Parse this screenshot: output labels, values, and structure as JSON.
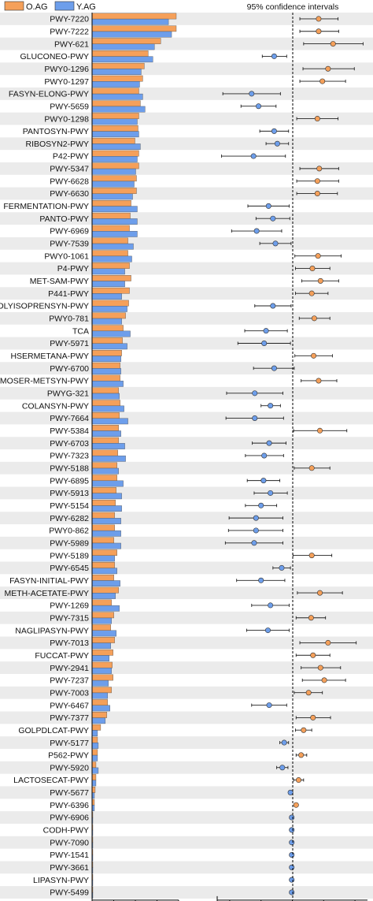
{
  "legend": [
    {
      "label": "O.AG",
      "color": "#f5a05a"
    },
    {
      "label": "Y.AG",
      "color": "#6d9eeb"
    }
  ],
  "ci_title": "95% confidence intervals",
  "colors": {
    "o": "#f5a05a",
    "y": "#6d9eeb",
    "stripe": "#ebebeb",
    "axis": "#000000"
  },
  "chart_data": [
    {
      "type": "bar",
      "orientation": "horizontal",
      "title": "",
      "categories": [
        "PWY-7220",
        "PWY-7222",
        "PWY-621",
        "GLUCONEO-PWY",
        "PWY0-1296",
        "PWY0-1297",
        "FASYN-ELONG-PWY",
        "PWY-5659",
        "PWY0-1298",
        "PANTOSYN-PWY",
        "RIBOSYN2-PWY",
        "P42-PWY",
        "PWY-5347",
        "PWY-6628",
        "PWY-6630",
        "FERMENTATION-PWY",
        "PANTO-PWY",
        "PWY-6969",
        "PWY-7539",
        "PWY0-1061",
        "P4-PWY",
        "MET-SAM-PWY",
        "P441-PWY",
        "POLYISOPRENSYN-PWY",
        "PWY0-781",
        "TCA",
        "PWY-5971",
        "HSERMETANA-PWY",
        "PWY-6700",
        "HOMOSER-METSYN-PWY",
        "PWYG-321",
        "COLANSYN-PWY",
        "PWY-7664",
        "PWY-5384",
        "PWY-6703",
        "PWY-7323",
        "PWY-5188",
        "PWY-6895",
        "PWY-5913",
        "PWY-5154",
        "PWY-6282",
        "PWY0-862",
        "PWY-5989",
        "PWY-5189",
        "PWY-6545",
        "FASYN-INITIAL-PWY",
        "METH-ACETATE-PWY",
        "PWY-1269",
        "PWY-7315",
        "NAGLIPASYN-PWY",
        "PWY-7013",
        "FUCCAT-PWY",
        "PWY-2941",
        "PWY-7237",
        "PWY-7003",
        "PWY-6467",
        "PWY-7377",
        "GOLPDLCAT-PWY",
        "PWY-5177",
        "P562-PWY",
        "PWY-5920",
        "LACTOSECAT-PWY",
        "PWY-5677",
        "PWY-6396",
        "PWY-6906",
        "CODH-PWY",
        "PWY-7090",
        "PWY-1541",
        "PWY-3661",
        "LIPASYN-PWY",
        "PWY-5499"
      ],
      "series": [
        {
          "name": "O.AG",
          "values": [
            108,
            108,
            88,
            72,
            67,
            65,
            60,
            62,
            60,
            59,
            55,
            60,
            60,
            57,
            57,
            50,
            49,
            48,
            46,
            46,
            48,
            50,
            48,
            47,
            43,
            40,
            39,
            38,
            36,
            36,
            34,
            36,
            35,
            34,
            34,
            33,
            32,
            32,
            31,
            30,
            29,
            29,
            28,
            32,
            29,
            28,
            34,
            25,
            28,
            24,
            29,
            27,
            26,
            27,
            25,
            20,
            19,
            11,
            7,
            7,
            5,
            5,
            4,
            3,
            1,
            1,
            1,
            1,
            1,
            1,
            1
          ]
        },
        {
          "name": "Y.AG",
          "values": [
            98,
            102,
            80,
            78,
            63,
            61,
            65,
            68,
            58,
            60,
            62,
            58,
            56,
            54,
            52,
            58,
            58,
            58,
            53,
            51,
            42,
            42,
            38,
            45,
            38,
            49,
            45,
            37,
            37,
            40,
            35,
            41,
            46,
            37,
            42,
            43,
            34,
            40,
            38,
            38,
            37,
            37,
            37,
            29,
            32,
            36,
            30,
            35,
            25,
            31,
            24,
            22,
            25,
            21,
            20,
            23,
            17,
            7,
            8,
            7,
            8,
            5,
            3,
            3,
            1,
            1,
            1,
            1,
            1,
            1,
            1
          ]
        }
      ],
      "xlabel": "",
      "ylabel": "",
      "grid": false
    },
    {
      "type": "scatter",
      "title": "95% confidence intervals",
      "description_of_marks": "point estimate with horizontal error bar per pathway; orange = higher in O.AG, blue = higher in Y.AG; dashed vertical line at zero",
      "points": [
        {
          "category": "PWY-7220",
          "group": "O.AG",
          "value": 0.42,
          "lo": 0.12,
          "hi": 0.73
        },
        {
          "category": "PWY-7222",
          "group": "O.AG",
          "value": 0.42,
          "lo": 0.12,
          "hi": 0.74
        },
        {
          "category": "PWY-621",
          "group": "O.AG",
          "value": 0.65,
          "lo": 0.18,
          "hi": 1.13
        },
        {
          "category": "GLUCONEO-PWY",
          "group": "Y.AG",
          "value": -0.29,
          "lo": -0.48,
          "hi": -0.09
        },
        {
          "category": "PWY0-1296",
          "group": "O.AG",
          "value": 0.57,
          "lo": 0.17,
          "hi": 0.99
        },
        {
          "category": "PWY0-1297",
          "group": "O.AG",
          "value": 0.48,
          "lo": 0.12,
          "hi": 0.85
        },
        {
          "category": "FASYN-ELONG-PWY",
          "group": "Y.AG",
          "value": -0.65,
          "lo": -1.11,
          "hi": -0.19
        },
        {
          "category": "PWY-5659",
          "group": "Y.AG",
          "value": -0.54,
          "lo": -0.82,
          "hi": -0.26
        },
        {
          "category": "PWY0-1298",
          "group": "O.AG",
          "value": 0.4,
          "lo": 0.07,
          "hi": 0.73
        },
        {
          "category": "PANTOSYN-PWY",
          "group": "Y.AG",
          "value": -0.29,
          "lo": -0.52,
          "hi": -0.06
        },
        {
          "category": "RIBOSYN2-PWY",
          "group": "Y.AG",
          "value": -0.24,
          "lo": -0.42,
          "hi": -0.06
        },
        {
          "category": "P42-PWY",
          "group": "Y.AG",
          "value": -0.62,
          "lo": -1.13,
          "hi": -0.11
        },
        {
          "category": "PWY-5347",
          "group": "O.AG",
          "value": 0.43,
          "lo": 0.12,
          "hi": 0.74
        },
        {
          "category": "PWY-6628",
          "group": "O.AG",
          "value": 0.4,
          "lo": 0.07,
          "hi": 0.74
        },
        {
          "category": "PWY-6630",
          "group": "O.AG",
          "value": 0.4,
          "lo": 0.07,
          "hi": 0.72
        },
        {
          "category": "FERMENTATION-PWY",
          "group": "Y.AG",
          "value": -0.38,
          "lo": -0.71,
          "hi": -0.05
        },
        {
          "category": "PANTO-PWY",
          "group": "Y.AG",
          "value": -0.31,
          "lo": -0.58,
          "hi": -0.04
        },
        {
          "category": "PWY-6969",
          "group": "Y.AG",
          "value": -0.57,
          "lo": -0.97,
          "hi": -0.17
        },
        {
          "category": "PWY-7539",
          "group": "Y.AG",
          "value": -0.27,
          "lo": -0.52,
          "hi": -0.02
        },
        {
          "category": "PWY0-1061",
          "group": "O.AG",
          "value": 0.41,
          "lo": 0.04,
          "hi": 0.78
        },
        {
          "category": "P4-PWY",
          "group": "O.AG",
          "value": 0.32,
          "lo": 0.05,
          "hi": 0.6
        },
        {
          "category": "MET-SAM-PWY",
          "group": "O.AG",
          "value": 0.45,
          "lo": 0.15,
          "hi": 0.74
        },
        {
          "category": "P441-PWY",
          "group": "O.AG",
          "value": 0.31,
          "lo": 0.05,
          "hi": 0.57
        },
        {
          "category": "POLYISOPRENSYN-PWY",
          "group": "Y.AG",
          "value": -0.31,
          "lo": -0.6,
          "hi": -0.02
        },
        {
          "category": "PWY0-781",
          "group": "O.AG",
          "value": 0.35,
          "lo": 0.11,
          "hi": 0.6
        },
        {
          "category": "TCA",
          "group": "Y.AG",
          "value": -0.42,
          "lo": -0.76,
          "hi": -0.08
        },
        {
          "category": "PWY-5971",
          "group": "Y.AG",
          "value": -0.45,
          "lo": -0.87,
          "hi": -0.03
        },
        {
          "category": "HSERMETANA-PWY",
          "group": "O.AG",
          "value": 0.34,
          "lo": 0.04,
          "hi": 0.64
        },
        {
          "category": "PWY-6700",
          "group": "Y.AG",
          "value": -0.29,
          "lo": -0.62,
          "hi": 0.03
        },
        {
          "category": "HOMOSER-METSYN-PWY",
          "group": "O.AG",
          "value": 0.42,
          "lo": 0.14,
          "hi": 0.71
        },
        {
          "category": "PWYG-321",
          "group": "Y.AG",
          "value": -0.6,
          "lo": -1.05,
          "hi": -0.15
        },
        {
          "category": "COLANSYN-PWY",
          "group": "Y.AG",
          "value": -0.35,
          "lo": -0.5,
          "hi": -0.19
        },
        {
          "category": "PWY-7664",
          "group": "Y.AG",
          "value": -0.6,
          "lo": -1.06,
          "hi": -0.14
        },
        {
          "category": "PWY-5384",
          "group": "O.AG",
          "value": 0.44,
          "lo": 0.02,
          "hi": 0.87
        },
        {
          "category": "PWY-6703",
          "group": "Y.AG",
          "value": -0.37,
          "lo": -0.64,
          "hi": -0.1
        },
        {
          "category": "PWY-7323",
          "group": "Y.AG",
          "value": -0.45,
          "lo": -0.75,
          "hi": -0.14
        },
        {
          "category": "PWY-5188",
          "group": "O.AG",
          "value": 0.31,
          "lo": 0.03,
          "hi": 0.6
        },
        {
          "category": "PWY-6895",
          "group": "Y.AG",
          "value": -0.46,
          "lo": -0.72,
          "hi": -0.2
        },
        {
          "category": "PWY-5913",
          "group": "Y.AG",
          "value": -0.35,
          "lo": -0.61,
          "hi": -0.08
        },
        {
          "category": "PWY-5154",
          "group": "Y.AG",
          "value": -0.5,
          "lo": -0.75,
          "hi": -0.25
        },
        {
          "category": "PWY-6282",
          "group": "Y.AG",
          "value": -0.58,
          "lo": -1.01,
          "hi": -0.15
        },
        {
          "category": "PWY0-862",
          "group": "Y.AG",
          "value": -0.58,
          "lo": -1.02,
          "hi": -0.15
        },
        {
          "category": "PWY-5989",
          "group": "Y.AG",
          "value": -0.61,
          "lo": -1.07,
          "hi": -0.15
        },
        {
          "category": "PWY-5189",
          "group": "O.AG",
          "value": 0.31,
          "lo": 0.01,
          "hi": 0.63
        },
        {
          "category": "PWY-6545",
          "group": "Y.AG",
          "value": -0.17,
          "lo": -0.31,
          "hi": -0.03
        },
        {
          "category": "FASYN-INITIAL-PWY",
          "group": "Y.AG",
          "value": -0.5,
          "lo": -0.89,
          "hi": -0.12
        },
        {
          "category": "METH-ACETATE-PWY",
          "group": "O.AG",
          "value": 0.44,
          "lo": 0.08,
          "hi": 0.8
        },
        {
          "category": "PWY-1269",
          "group": "Y.AG",
          "value": -0.35,
          "lo": -0.65,
          "hi": -0.05
        },
        {
          "category": "PWY-7315",
          "group": "O.AG",
          "value": 0.3,
          "lo": 0.06,
          "hi": 0.53
        },
        {
          "category": "NAGLIPASYN-PWY",
          "group": "Y.AG",
          "value": -0.39,
          "lo": -0.73,
          "hi": -0.05
        },
        {
          "category": "PWY-7013",
          "group": "O.AG",
          "value": 0.57,
          "lo": 0.12,
          "hi": 1.02
        },
        {
          "category": "FUCCAT-PWY",
          "group": "O.AG",
          "value": 0.33,
          "lo": 0.06,
          "hi": 0.6
        },
        {
          "category": "PWY-2941",
          "group": "O.AG",
          "value": 0.45,
          "lo": 0.14,
          "hi": 0.77
        },
        {
          "category": "PWY-7237",
          "group": "O.AG",
          "value": 0.51,
          "lo": 0.16,
          "hi": 0.85
        },
        {
          "category": "PWY-7003",
          "group": "O.AG",
          "value": 0.26,
          "lo": 0.03,
          "hi": 0.48
        },
        {
          "category": "PWY-6467",
          "group": "Y.AG",
          "value": -0.37,
          "lo": -0.65,
          "hi": -0.09
        },
        {
          "category": "PWY-7377",
          "group": "O.AG",
          "value": 0.33,
          "lo": 0.06,
          "hi": 0.61
        },
        {
          "category": "GOLPDLCAT-PWY",
          "group": "O.AG",
          "value": 0.18,
          "lo": 0.05,
          "hi": 0.31
        },
        {
          "category": "PWY-5177",
          "group": "Y.AG",
          "value": -0.13,
          "lo": -0.2,
          "hi": -0.06
        },
        {
          "category": "P562-PWY",
          "group": "O.AG",
          "value": 0.14,
          "lo": 0.06,
          "hi": 0.23
        },
        {
          "category": "PWY-5920",
          "group": "Y.AG",
          "value": -0.16,
          "lo": -0.25,
          "hi": -0.07
        },
        {
          "category": "LACTOSECAT-PWY",
          "group": "O.AG",
          "value": 0.1,
          "lo": 0.02,
          "hi": 0.18
        },
        {
          "category": "PWY-5677",
          "group": "Y.AG",
          "value": -0.03,
          "lo": -0.06,
          "hi": -0.01
        },
        {
          "category": "PWY-6396",
          "group": "O.AG",
          "value": 0.06,
          "lo": 0.03,
          "hi": 0.08
        },
        {
          "category": "PWY-6906",
          "group": "Y.AG",
          "value": -0.01,
          "lo": -0.02,
          "hi": 0.0
        },
        {
          "category": "CODH-PWY",
          "group": "Y.AG",
          "value": -0.01,
          "lo": -0.02,
          "hi": 0.0
        },
        {
          "category": "PWY-7090",
          "group": "Y.AG",
          "value": -0.01,
          "lo": -0.02,
          "hi": 0.0
        },
        {
          "category": "PWY-1541",
          "group": "Y.AG",
          "value": -0.01,
          "lo": -0.02,
          "hi": 0.0
        },
        {
          "category": "PWY-3661",
          "group": "Y.AG",
          "value": -0.01,
          "lo": -0.02,
          "hi": 0.0
        },
        {
          "category": "LIPASYN-PWY",
          "group": "Y.AG",
          "value": -0.01,
          "lo": -0.02,
          "hi": 0.0
        },
        {
          "category": "PWY-5499",
          "group": "Y.AG",
          "value": -0.01,
          "lo": -0.02,
          "hi": 0.0
        }
      ],
      "xlim": [
        -1.2,
        1.2
      ],
      "zero_line": "dashed",
      "grid": false
    }
  ]
}
